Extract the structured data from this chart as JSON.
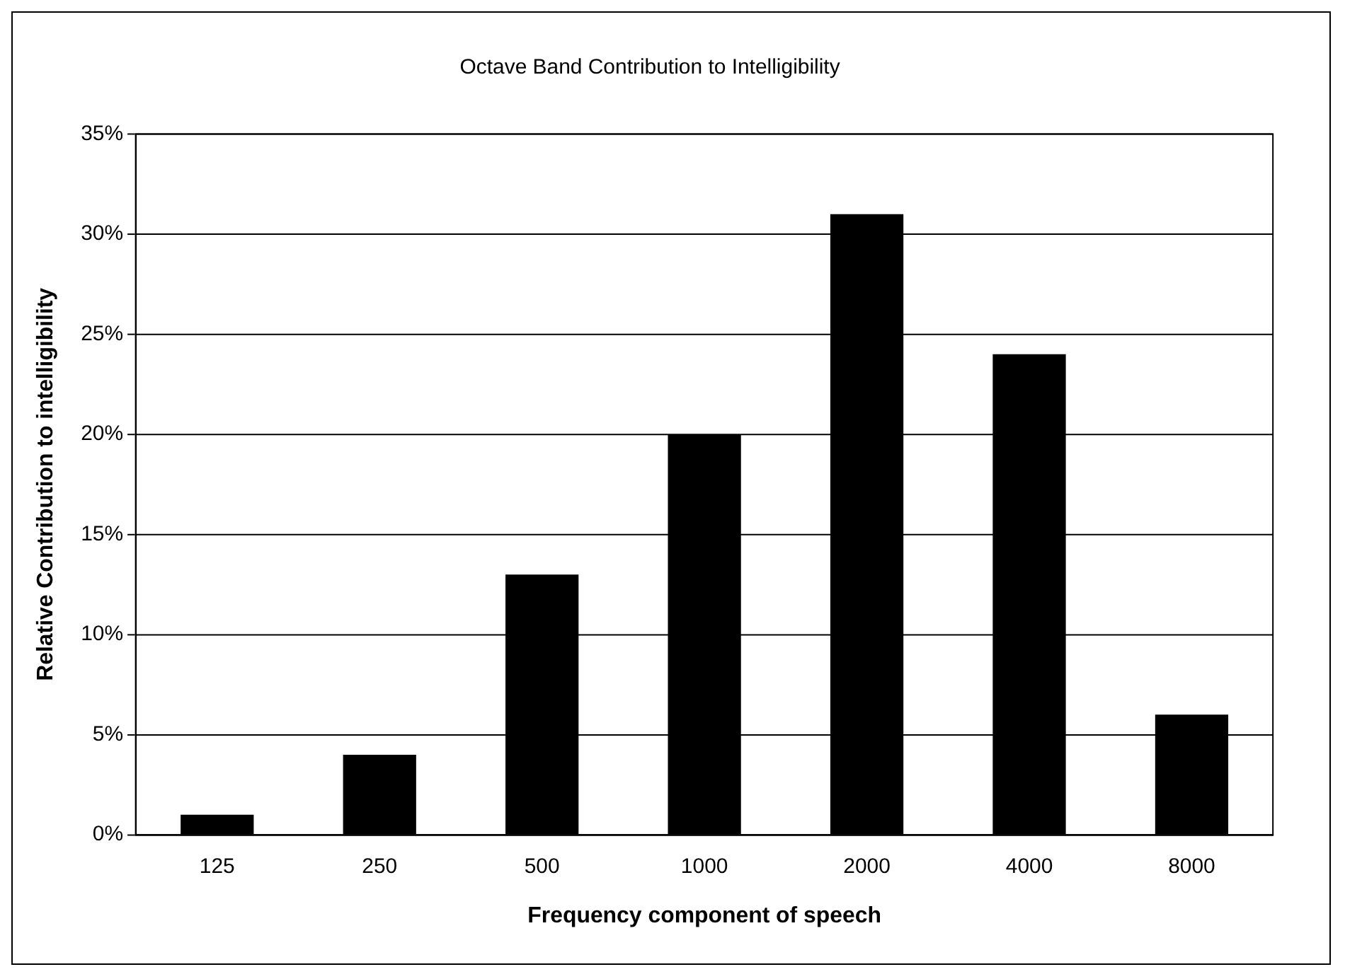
{
  "chart_data": {
    "type": "bar",
    "title": "Octave Band Contribution to Intelligibility",
    "xlabel": "Frequency component of speech",
    "ylabel": "Relative Contribution to intelligibility",
    "categories": [
      "125",
      "250",
      "500",
      "1000",
      "2000",
      "4000",
      "8000"
    ],
    "values": [
      1,
      4,
      13,
      20,
      31,
      24,
      6
    ],
    "color": "#000000",
    "ylim": [
      0,
      35
    ],
    "yticks": [
      {
        "value": 0,
        "label": "0%"
      },
      {
        "value": 5,
        "label": "5%"
      },
      {
        "value": 10,
        "label": "10%"
      },
      {
        "value": 15,
        "label": "15%"
      },
      {
        "value": 20,
        "label": "20%"
      },
      {
        "value": 25,
        "label": "25%"
      },
      {
        "value": 30,
        "label": "30%"
      },
      {
        "value": 35,
        "label": "35%"
      }
    ],
    "grid": "y",
    "legend": false
  }
}
